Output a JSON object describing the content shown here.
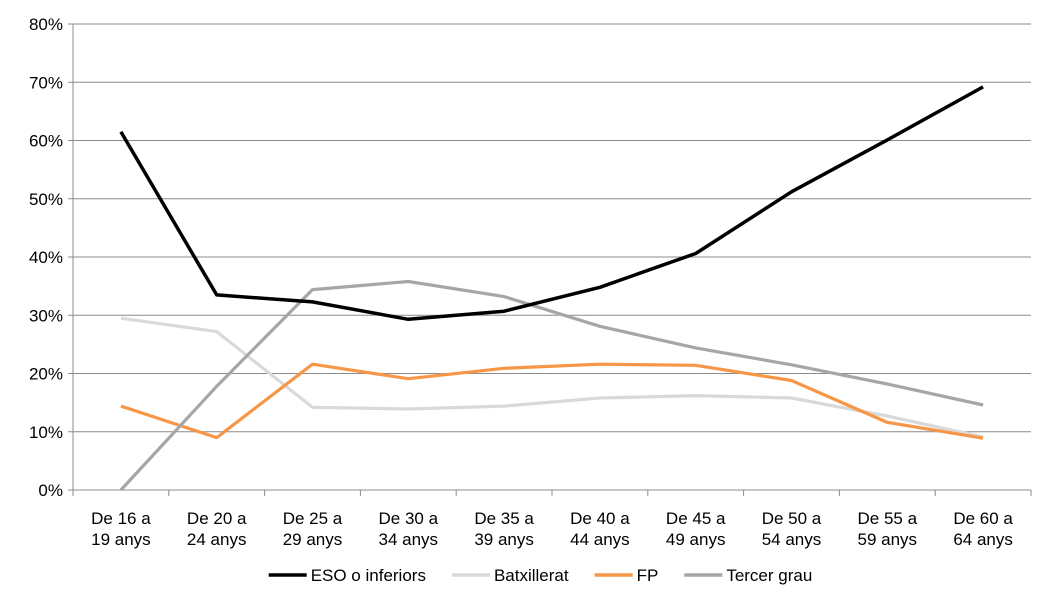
{
  "chart_data": {
    "type": "line",
    "title": "",
    "xlabel": "",
    "ylabel": "",
    "categories": [
      [
        "De 16 a",
        "19 anys"
      ],
      [
        "De 20 a",
        "24 anys"
      ],
      [
        "De 25 a",
        "29 anys"
      ],
      [
        "De 30 a",
        "34 anys"
      ],
      [
        "De 35 a",
        "39 anys"
      ],
      [
        "De 40 a",
        "44 anys"
      ],
      [
        "De 45 a",
        "49 anys"
      ],
      [
        "De 50 a",
        "54 anys"
      ],
      [
        "De 55 a",
        "59 anys"
      ],
      [
        "De 60 a",
        "64 anys"
      ]
    ],
    "ylim": [
      0,
      80
    ],
    "y_ticks": [
      0,
      10,
      20,
      30,
      40,
      50,
      60,
      70,
      80
    ],
    "y_tick_labels": [
      "0%",
      "10%",
      "20%",
      "30%",
      "40%",
      "50%",
      "60%",
      "70%",
      "80%"
    ],
    "grid": true,
    "legend_position": "bottom",
    "series": [
      {
        "name": "ESO o inferiors",
        "color": "#000000",
        "values": [
          61.5,
          33.5,
          32.3,
          29.3,
          30.7,
          34.8,
          40.6,
          51.2,
          60.1,
          69.2
        ]
      },
      {
        "name": "Batxillerat",
        "color": "#d9d9d9",
        "values": [
          29.5,
          27.2,
          14.2,
          13.9,
          14.4,
          15.8,
          16.2,
          15.8,
          12.7,
          9.1
        ]
      },
      {
        "name": "FP",
        "color": "#f79646",
        "values": [
          14.4,
          9.0,
          21.6,
          19.1,
          20.9,
          21.6,
          21.4,
          18.8,
          11.6,
          8.9
        ]
      },
      {
        "name": "Tercer grau",
        "color": "#a6a6a6",
        "values": [
          0.0,
          17.8,
          34.4,
          35.8,
          33.2,
          28.1,
          24.4,
          21.5,
          18.2,
          14.6
        ]
      }
    ]
  }
}
